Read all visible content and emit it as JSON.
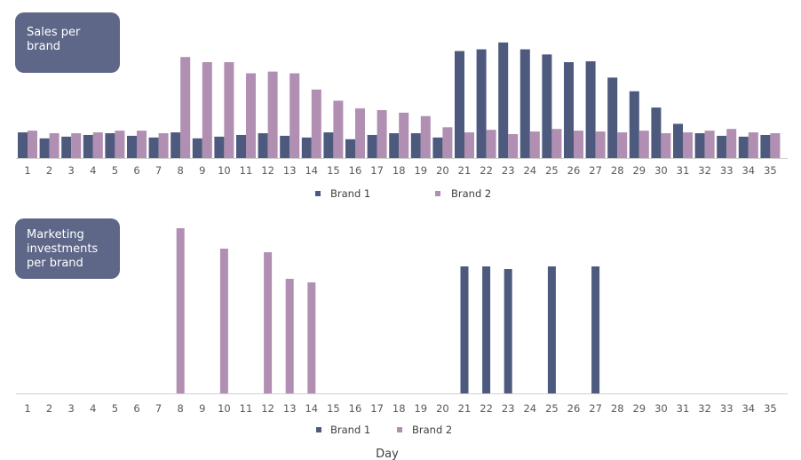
{
  "colors": {
    "brand1": "#4d5a7e",
    "brand2": "#b08fb2",
    "badge": "#5e6788",
    "axis": "#d0d0d0"
  },
  "chart_data": [
    {
      "type": "bar",
      "title": "Sales per brand",
      "title_lines": [
        "Sales per",
        "brand"
      ],
      "categories": [
        "1",
        "2",
        "3",
        "4",
        "5",
        "6",
        "7",
        "8",
        "9",
        "10",
        "11",
        "12",
        "13",
        "14",
        "15",
        "16",
        "17",
        "18",
        "19",
        "20",
        "21",
        "22",
        "23",
        "24",
        "25",
        "26",
        "27",
        "28",
        "29",
        "30",
        "31",
        "32",
        "33",
        "34",
        "35"
      ],
      "series": [
        {
          "name": "Brand 1",
          "color": "#4d5a7e",
          "values": [
            30,
            23,
            25,
            27,
            29,
            26,
            24,
            30,
            23,
            25,
            27,
            29,
            26,
            24,
            30,
            22,
            27,
            29,
            29,
            24,
            125,
            127,
            135,
            127,
            121,
            112,
            113,
            94,
            78,
            59,
            40,
            29,
            26,
            25,
            27
          ]
        },
        {
          "name": "Brand 2",
          "color": "#b08fb2",
          "values": [
            32,
            29,
            29,
            30,
            32,
            32,
            29,
            118,
            112,
            112,
            99,
            101,
            99,
            80,
            67,
            58,
            56,
            53,
            49,
            36,
            30,
            33,
            28,
            31,
            34,
            32,
            31,
            30,
            32,
            29,
            30,
            32,
            34,
            30,
            29
          ]
        }
      ],
      "ylim": [
        0,
        140
      ],
      "legend": "bottom",
      "grid": false
    },
    {
      "type": "bar",
      "title": "Marketing investments per brand",
      "title_lines": [
        "Marketing",
        "investments",
        "per brand"
      ],
      "categories": [
        "1",
        "2",
        "3",
        "4",
        "5",
        "6",
        "7",
        "8",
        "9",
        "10",
        "11",
        "12",
        "13",
        "14",
        "15",
        "16",
        "17",
        "18",
        "19",
        "20",
        "21",
        "22",
        "23",
        "24",
        "25",
        "26",
        "27",
        "28",
        "29",
        "30",
        "31",
        "32",
        "33",
        "34",
        "35"
      ],
      "series": [
        {
          "name": "Brand 1",
          "color": "#4d5a7e",
          "values": [
            0,
            0,
            0,
            0,
            0,
            0,
            0,
            0,
            0,
            0,
            0,
            0,
            0,
            0,
            0,
            0,
            0,
            0,
            0,
            0,
            143,
            143,
            140,
            0,
            143,
            0,
            143,
            0,
            0,
            0,
            0,
            0,
            0,
            0,
            0
          ]
        },
        {
          "name": "Brand 2",
          "color": "#b08fb2",
          "values": [
            0,
            0,
            0,
            0,
            0,
            0,
            0,
            186,
            0,
            163,
            0,
            159,
            129,
            125,
            0,
            0,
            0,
            0,
            0,
            0,
            0,
            0,
            0,
            0,
            0,
            0,
            0,
            0,
            0,
            0,
            0,
            0,
            0,
            0,
            0
          ]
        }
      ],
      "xlabel": "Day",
      "ylim": [
        0,
        186
      ],
      "legend": "bottom",
      "grid": false
    }
  ]
}
